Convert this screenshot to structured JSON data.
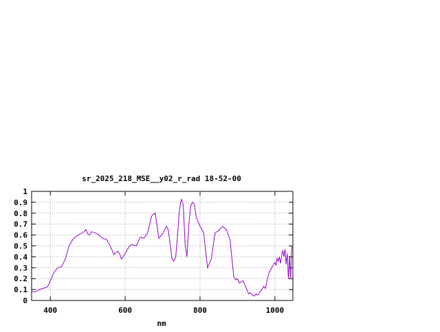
{
  "chart_data": {
    "type": "line",
    "title": "sr_2025_218_MSE__y02_r_rad 18-52-00",
    "xlabel": "nm",
    "ylabel": "",
    "xlim": [
      350,
      1048
    ],
    "ylim": [
      0,
      1
    ],
    "grid": true,
    "x_ticks": [
      400,
      600,
      800,
      1000
    ],
    "x_tick_labels": [
      "400",
      "600",
      "800",
      "1000"
    ],
    "y_ticks": [
      0,
      0.1,
      0.2,
      0.3,
      0.4,
      0.5,
      0.6,
      0.7,
      0.8,
      0.9,
      1
    ],
    "y_tick_labels": [
      "0",
      "0.1",
      "0.2",
      "0.3",
      "0.4",
      "0.5",
      "0.6",
      "0.7",
      "0.8",
      "0.9",
      "1"
    ],
    "series": [
      {
        "name": "",
        "color": "#9400d3",
        "x": [
          350,
          360,
          370,
          380,
          390,
          395,
          400,
          410,
          420,
          430,
          440,
          450,
          460,
          470,
          480,
          490,
          495,
          500,
          505,
          510,
          520,
          530,
          540,
          550,
          560,
          570,
          575,
          580,
          585,
          590,
          600,
          610,
          615,
          620,
          630,
          640,
          650,
          660,
          670,
          675,
          680,
          690,
          700,
          710,
          715,
          720,
          725,
          730,
          735,
          740,
          745,
          750,
          755,
          760,
          765,
          770,
          775,
          780,
          785,
          790,
          800,
          805,
          810,
          815,
          820,
          830,
          840,
          850,
          860,
          870,
          880,
          890,
          895,
          900,
          905,
          910,
          915,
          920,
          925,
          930,
          935,
          940,
          945,
          950,
          955,
          960,
          965,
          970,
          975,
          980,
          985,
          990,
          995,
          1000,
          1003,
          1006,
          1009,
          1012,
          1015,
          1018,
          1021,
          1024,
          1027,
          1030,
          1033,
          1036,
          1039,
          1042,
          1045,
          1048
        ],
        "y": [
          0.08,
          0.08,
          0.1,
          0.11,
          0.12,
          0.14,
          0.18,
          0.26,
          0.3,
          0.31,
          0.38,
          0.5,
          0.56,
          0.59,
          0.61,
          0.63,
          0.65,
          0.61,
          0.6,
          0.63,
          0.62,
          0.6,
          0.57,
          0.56,
          0.5,
          0.42,
          0.44,
          0.45,
          0.43,
          0.38,
          0.43,
          0.49,
          0.51,
          0.51,
          0.5,
          0.58,
          0.57,
          0.62,
          0.77,
          0.79,
          0.8,
          0.57,
          0.61,
          0.68,
          0.65,
          0.52,
          0.38,
          0.36,
          0.4,
          0.6,
          0.83,
          0.93,
          0.88,
          0.52,
          0.4,
          0.7,
          0.87,
          0.9,
          0.88,
          0.76,
          0.68,
          0.65,
          0.61,
          0.45,
          0.3,
          0.38,
          0.62,
          0.64,
          0.68,
          0.65,
          0.56,
          0.22,
          0.19,
          0.2,
          0.16,
          0.17,
          0.18,
          0.14,
          0.1,
          0.06,
          0.07,
          0.05,
          0.04,
          0.06,
          0.05,
          0.08,
          0.1,
          0.13,
          0.11,
          0.2,
          0.26,
          0.29,
          0.32,
          0.35,
          0.32,
          0.39,
          0.36,
          0.4,
          0.34,
          0.41,
          0.46,
          0.4,
          0.47,
          0.33,
          0.43,
          0.2,
          0.41,
          0.2,
          0.5,
          0.5
        ]
      }
    ]
  }
}
